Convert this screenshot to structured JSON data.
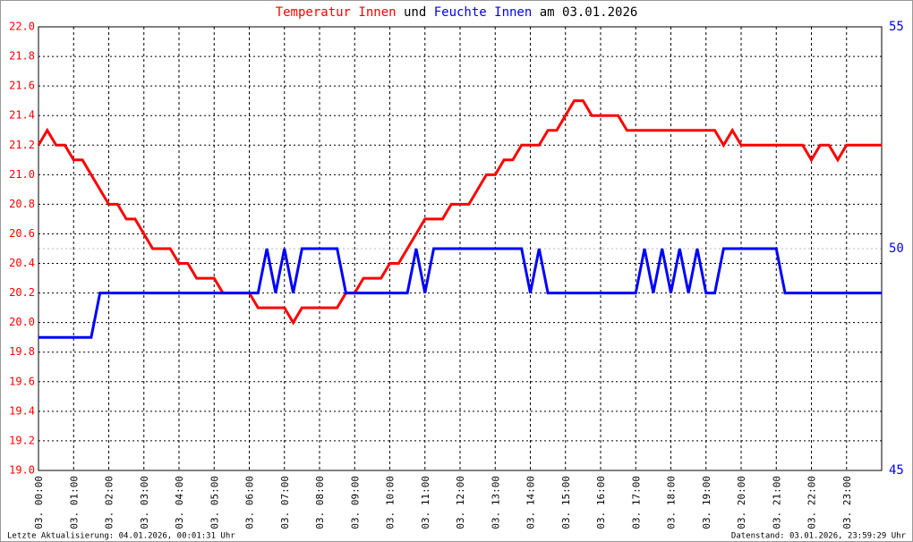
{
  "chart_data": {
    "type": "line",
    "title_parts": [
      "und",
      "am 03.01.2026"
    ],
    "footer_left": "Letzte Aktualisierung: 04.01.2026, 00:01:31 Uhr",
    "footer_right": "Datenstand: 03.01.2026, 23:59:29 Uhr",
    "x": [
      0,
      0.25,
      0.5,
      0.75,
      1,
      1.25,
      1.5,
      1.75,
      2,
      2.25,
      2.5,
      2.75,
      3,
      3.25,
      3.5,
      3.75,
      4,
      4.25,
      4.5,
      4.75,
      5,
      5.25,
      5.5,
      5.75,
      6,
      6.25,
      6.5,
      6.75,
      7,
      7.25,
      7.5,
      7.75,
      8,
      8.25,
      8.5,
      8.75,
      9,
      9.25,
      9.5,
      9.75,
      10,
      10.25,
      10.5,
      10.75,
      11,
      11.25,
      11.5,
      11.75,
      12,
      12.25,
      12.5,
      12.75,
      13,
      13.25,
      13.5,
      13.75,
      14,
      14.25,
      14.5,
      14.75,
      15,
      15.25,
      15.5,
      15.75,
      16,
      16.25,
      16.5,
      16.75,
      17,
      17.25,
      17.5,
      17.75,
      18,
      18.25,
      18.5,
      18.75,
      19,
      19.25,
      19.5,
      19.75,
      20,
      20.25,
      20.5,
      20.75,
      21,
      21.25,
      21.5,
      21.75,
      22,
      22.25,
      22.5,
      22.75,
      23,
      23.25,
      23.5,
      23.75,
      24
    ],
    "series": [
      {
        "name": "Temperatur Innen",
        "color": "#ff0000",
        "axis": "y",
        "values": [
          21.2,
          21.3,
          21.2,
          21.2,
          21.1,
          21.1,
          21.0,
          20.9,
          20.8,
          20.8,
          20.7,
          20.7,
          20.6,
          20.5,
          20.5,
          20.5,
          20.4,
          20.4,
          20.3,
          20.3,
          20.3,
          20.2,
          20.2,
          20.2,
          20.2,
          20.1,
          20.1,
          20.1,
          20.1,
          20.0,
          20.1,
          20.1,
          20.1,
          20.1,
          20.1,
          20.2,
          20.2,
          20.3,
          20.3,
          20.3,
          20.4,
          20.4,
          20.5,
          20.6,
          20.7,
          20.7,
          20.7,
          20.8,
          20.8,
          20.8,
          20.9,
          21.0,
          21.0,
          21.1,
          21.1,
          21.2,
          21.2,
          21.2,
          21.3,
          21.3,
          21.4,
          21.5,
          21.5,
          21.4,
          21.4,
          21.4,
          21.4,
          21.3,
          21.3,
          21.3,
          21.3,
          21.3,
          21.3,
          21.3,
          21.3,
          21.3,
          21.3,
          21.3,
          21.2,
          21.3,
          21.2,
          21.2,
          21.2,
          21.2,
          21.2,
          21.2,
          21.2,
          21.2,
          21.1,
          21.2,
          21.2,
          21.1,
          21.2,
          21.2,
          21.2,
          21.2,
          21.2
        ]
      },
      {
        "name": "Feuchte Innen",
        "color": "#0000ff",
        "axis": "y2",
        "values": [
          48,
          48,
          48,
          48,
          48,
          48,
          48,
          49,
          49,
          49,
          49,
          49,
          49,
          49,
          49,
          49,
          49,
          49,
          49,
          49,
          49,
          49,
          49,
          49,
          49,
          49,
          50,
          49,
          50,
          49,
          50,
          50,
          50,
          50,
          50,
          49,
          49,
          49,
          49,
          49,
          49,
          49,
          49,
          50,
          49,
          50,
          50,
          50,
          50,
          50,
          50,
          50,
          50,
          50,
          50,
          50,
          49,
          50,
          49,
          49,
          49,
          49,
          49,
          49,
          49,
          49,
          49,
          49,
          49,
          50,
          49,
          50,
          49,
          50,
          49,
          50,
          49,
          49,
          50,
          50,
          50,
          50,
          50,
          50,
          50,
          49,
          49,
          49,
          49,
          49,
          49,
          49,
          49,
          49,
          49,
          49,
          49
        ]
      }
    ],
    "xlim": [
      0,
      24
    ],
    "xticks": [
      {
        "value": 0,
        "label": "03. 00:00"
      },
      {
        "value": 1,
        "label": "03. 01:00"
      },
      {
        "value": 2,
        "label": "03. 02:00"
      },
      {
        "value": 3,
        "label": "03. 03:00"
      },
      {
        "value": 4,
        "label": "03. 04:00"
      },
      {
        "value": 5,
        "label": "03. 05:00"
      },
      {
        "value": 6,
        "label": "03. 06:00"
      },
      {
        "value": 7,
        "label": "03. 07:00"
      },
      {
        "value": 8,
        "label": "03. 08:00"
      },
      {
        "value": 9,
        "label": "03. 09:00"
      },
      {
        "value": 10,
        "label": "03. 10:00"
      },
      {
        "value": 11,
        "label": "03. 11:00"
      },
      {
        "value": 12,
        "label": "03. 12:00"
      },
      {
        "value": 13,
        "label": "03. 13:00"
      },
      {
        "value": 14,
        "label": "03. 14:00"
      },
      {
        "value": 15,
        "label": "03. 15:00"
      },
      {
        "value": 16,
        "label": "03. 16:00"
      },
      {
        "value": 17,
        "label": "03. 17:00"
      },
      {
        "value": 18,
        "label": "03. 18:00"
      },
      {
        "value": 19,
        "label": "03. 19:00"
      },
      {
        "value": 20,
        "label": "03. 20:00"
      },
      {
        "value": 21,
        "label": "03. 21:00"
      },
      {
        "value": 22,
        "label": "03. 22:00"
      },
      {
        "value": 23,
        "label": "03. 23:00"
      }
    ],
    "ylim": [
      19,
      22
    ],
    "yticks": [
      {
        "value": 19,
        "label": "19.0"
      },
      19.2,
      19.4,
      19.6,
      19.8,
      {
        "value": 20,
        "label": "20.0"
      },
      20.2,
      20.4,
      20.6,
      20.8,
      {
        "value": 21,
        "label": "21.0"
      },
      21.2,
      21.4,
      21.6,
      21.8,
      {
        "value": 22,
        "label": "22.0"
      }
    ],
    "y2lim": [
      45,
      55
    ],
    "y2ticks": [
      45,
      50,
      55
    ],
    "grid": true
  }
}
